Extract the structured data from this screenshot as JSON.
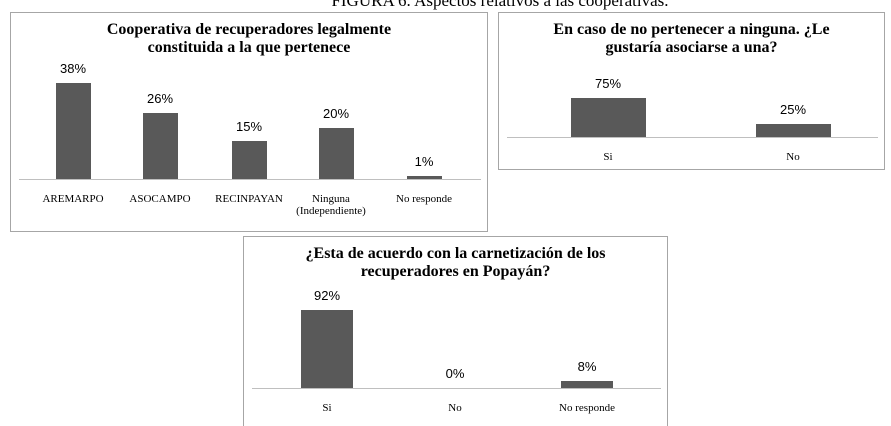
{
  "figure_title": "FIGURA 6. Aspectos relativos a las cooperativas.",
  "chart_data": [
    {
      "type": "bar",
      "title": "Cooperativa de recuperadores legalmente constituida a la que pertenece",
      "categories": [
        "AREMARPO",
        "ASOCAMPO",
        "RECINPAYAN",
        "Ninguna (Independiente)",
        "No responde"
      ],
      "values": [
        38,
        26,
        15,
        20,
        1
      ],
      "value_labels": [
        "38%",
        "26%",
        "15%",
        "20%",
        "1%"
      ],
      "color": "#595959"
    },
    {
      "type": "bar",
      "title": "En caso de no pertenecer a ninguna. ¿Le gustaría asociarse a una?",
      "categories": [
        "Si",
        "No"
      ],
      "values": [
        75,
        25
      ],
      "value_labels": [
        "75%",
        "25%"
      ],
      "color": "#595959"
    },
    {
      "type": "bar",
      "title": "¿Esta de acuerdo con la carnetización de los recuperadores en Popayán?",
      "categories": [
        "Si",
        "No",
        "No responde"
      ],
      "values": [
        92,
        0,
        8
      ],
      "value_labels": [
        "92%",
        "0%",
        "8%"
      ],
      "color": "#595959"
    }
  ]
}
